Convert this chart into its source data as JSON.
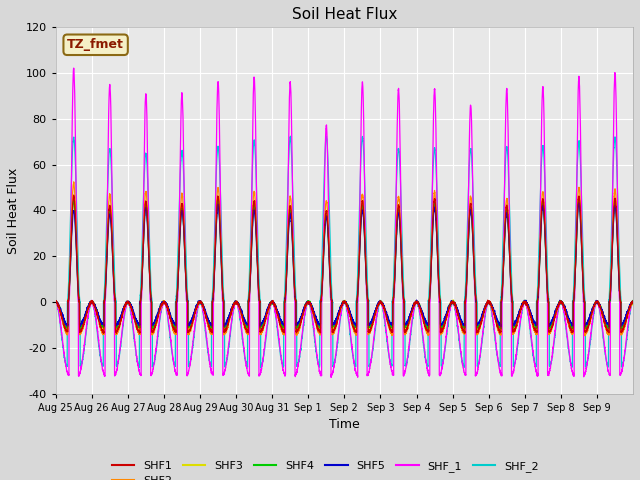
{
  "title": "Soil Heat Flux",
  "ylabel": "Soil Heat Flux",
  "xlabel": "Time",
  "ylim": [
    -40,
    120
  ],
  "bg_color": "#d8d8d8",
  "plot_bg_color": "#e8e8e8",
  "annotation_text": "TZ_fmet",
  "annotation_bg": "#f5f0c8",
  "annotation_border": "#8b6914",
  "series": {
    "SHF1": {
      "color": "#cc0000"
    },
    "SHF2": {
      "color": "#ff8800"
    },
    "SHF3": {
      "color": "#dddd00"
    },
    "SHF4": {
      "color": "#00cc00"
    },
    "SHF5": {
      "color": "#0000cc"
    },
    "SHF_1": {
      "color": "#ff00ff"
    },
    "SHF_2": {
      "color": "#00cccc"
    }
  },
  "xtick_labels": [
    "Aug 25",
    "Aug 26",
    "Aug 27",
    "Aug 28",
    "Aug 29",
    "Aug 30",
    "Aug 31",
    "Sep 1",
    "Sep 2",
    "Sep 3",
    "Sep 4",
    "Sep 5",
    "Sep 6",
    "Sep 7",
    "Sep 8",
    "Sep 9"
  ],
  "n_days": 16,
  "shf1_amps": [
    46,
    42,
    44,
    43,
    46,
    44,
    42,
    40,
    44,
    42,
    45,
    43,
    42,
    45,
    46,
    45
  ],
  "shf2_amps": [
    52,
    47,
    48,
    47,
    50,
    48,
    46,
    44,
    47,
    46,
    48,
    46,
    45,
    48,
    50,
    49
  ],
  "shf3_amps": [
    45,
    41,
    43,
    42,
    45,
    43,
    41,
    39,
    43,
    41,
    44,
    42,
    41,
    44,
    45,
    44
  ],
  "shf4_amps": [
    44,
    40,
    42,
    41,
    44,
    42,
    40,
    38,
    42,
    40,
    43,
    41,
    40,
    43,
    44,
    43
  ],
  "shf5_amps": [
    40,
    38,
    41,
    40,
    42,
    40,
    38,
    37,
    40,
    39,
    41,
    40,
    39,
    42,
    43,
    42
  ],
  "shf_1_amps": [
    102,
    95,
    91,
    91,
    96,
    98,
    96,
    77,
    96,
    93,
    93,
    86,
    93,
    94,
    98,
    100
  ],
  "shf_2_amps": [
    72,
    67,
    65,
    66,
    68,
    70,
    72,
    72,
    72,
    67,
    67,
    67,
    68,
    68,
    70,
    72
  ],
  "shf1_night": -13,
  "shf2_night": -14,
  "shf3_night": -12,
  "shf4_night": -11,
  "shf5_night": -10,
  "shf_1_night": -32,
  "shf_2_night": -28
}
